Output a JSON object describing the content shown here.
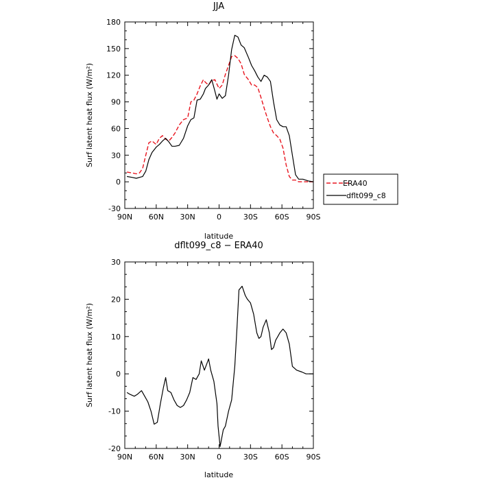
{
  "chart_data": [
    {
      "type": "line",
      "title": "JJA",
      "xlabel": "latitude",
      "ylabel": "Surf latent heat flux (W/m²)",
      "xlim": [
        -90,
        90
      ],
      "ylim": [
        -30,
        180
      ],
      "xticks": [
        "90N",
        "60N",
        "30N",
        "0",
        "30S",
        "60S",
        "90S"
      ],
      "yticks": [
        "-30",
        "0",
        "30",
        "60",
        "90",
        "120",
        "150",
        "180"
      ],
      "legend": {
        "placement": "right",
        "entries": [
          "ERA40",
          "dflt099_c8"
        ]
      },
      "x": [
        -88,
        -83,
        -79,
        -76,
        -73,
        -70,
        -67,
        -64,
        -60,
        -57,
        -54,
        -51,
        -48,
        -45,
        -42,
        -38,
        -34,
        -30,
        -27,
        -24,
        -21,
        -18,
        -15,
        -13,
        -10,
        -7,
        -4,
        -2,
        0,
        3,
        6,
        9,
        12,
        15,
        18,
        21,
        24,
        28,
        31,
        34,
        37,
        40,
        43,
        46,
        49,
        52,
        55,
        58,
        61,
        64,
        67,
        70,
        73,
        76,
        80,
        85,
        90
      ],
      "series": [
        {
          "name": "ERA40",
          "color": "#e8141e",
          "dash": true,
          "values": [
            11,
            10,
            9,
            10,
            15,
            30,
            44,
            46,
            42,
            49,
            52,
            48,
            46,
            50,
            55,
            64,
            70,
            72,
            90,
            92,
            99,
            108,
            115,
            112,
            109,
            114,
            115,
            110,
            105,
            109,
            121,
            131,
            141,
            142,
            139,
            133,
            121,
            115,
            109,
            109,
            106,
            95,
            83,
            72,
            62,
            55,
            52,
            48,
            38,
            19,
            6,
            2,
            2,
            0,
            0,
            0,
            0
          ]
        },
        {
          "name": "dflt099_c8",
          "color": "#000000",
          "dash": false,
          "values": [
            6,
            5,
            4,
            5,
            6,
            12,
            25,
            33,
            39,
            42,
            46,
            49,
            45,
            40,
            40,
            41,
            49,
            63,
            70,
            72,
            92,
            93,
            99,
            105,
            109,
            115,
            102,
            93,
            99,
            94,
            97,
            120,
            149,
            165,
            163,
            154,
            151,
            140,
            131,
            125,
            118,
            113,
            120,
            118,
            113,
            90,
            70,
            64,
            62,
            62,
            52,
            30,
            8,
            3,
            3,
            1,
            0
          ]
        }
      ]
    },
    {
      "type": "line",
      "title": "dflt099_c8 − ERA40",
      "xlabel": "latitude",
      "ylabel": "Surf latent heat flux (W/m²)",
      "xlim": [
        -90,
        90
      ],
      "ylim": [
        -20,
        30
      ],
      "xticks": [
        "90N",
        "60N",
        "30N",
        "0",
        "30S",
        "60S",
        "90S"
      ],
      "yticks": [
        "-20",
        "-10",
        "0",
        "10",
        "20",
        "30"
      ],
      "series": [
        {
          "name": "dflt099_c8 − ERA40",
          "color": "#000000",
          "dash": false,
          "values": [
            -5,
            -5.5,
            -6,
            -5.5,
            -4.5,
            -6,
            -7.5,
            -10,
            -13.5,
            -13,
            -8,
            -3.5,
            -1,
            -4.5,
            -5,
            -7,
            -8.5,
            -9,
            -8.5,
            -7,
            -5,
            -1,
            -1.5,
            0,
            3.5,
            1,
            2.5,
            4,
            1,
            -2,
            -8,
            -14,
            -19.5,
            -15,
            -14,
            -10,
            -7,
            2,
            12,
            22.5,
            23.5,
            21,
            20,
            19,
            16,
            11,
            9.5,
            10,
            12.5,
            14.5,
            11,
            6.5,
            7,
            9,
            10,
            11,
            12,
            11,
            8,
            2,
            1,
            0.5,
            0,
            0,
            0
          ]
        }
      ],
      "diff_x": [
        -88,
        -85,
        -81,
        -78,
        -74,
        -71,
        -68,
        -65,
        -62,
        -59,
        -56,
        -53,
        -51,
        -49,
        -46,
        -43,
        -40,
        -37,
        -34,
        -31,
        -28,
        -25,
        -22,
        -19,
        -17,
        -14,
        -12,
        -10,
        -8,
        -5,
        -2,
        -1,
        1,
        4,
        6,
        9,
        12,
        15,
        17,
        19,
        22,
        25,
        27,
        30,
        33,
        36,
        38,
        40,
        42,
        45,
        48,
        50,
        52,
        54,
        56,
        58,
        61,
        64,
        67,
        70,
        74,
        79,
        83,
        86,
        90
      ]
    }
  ]
}
